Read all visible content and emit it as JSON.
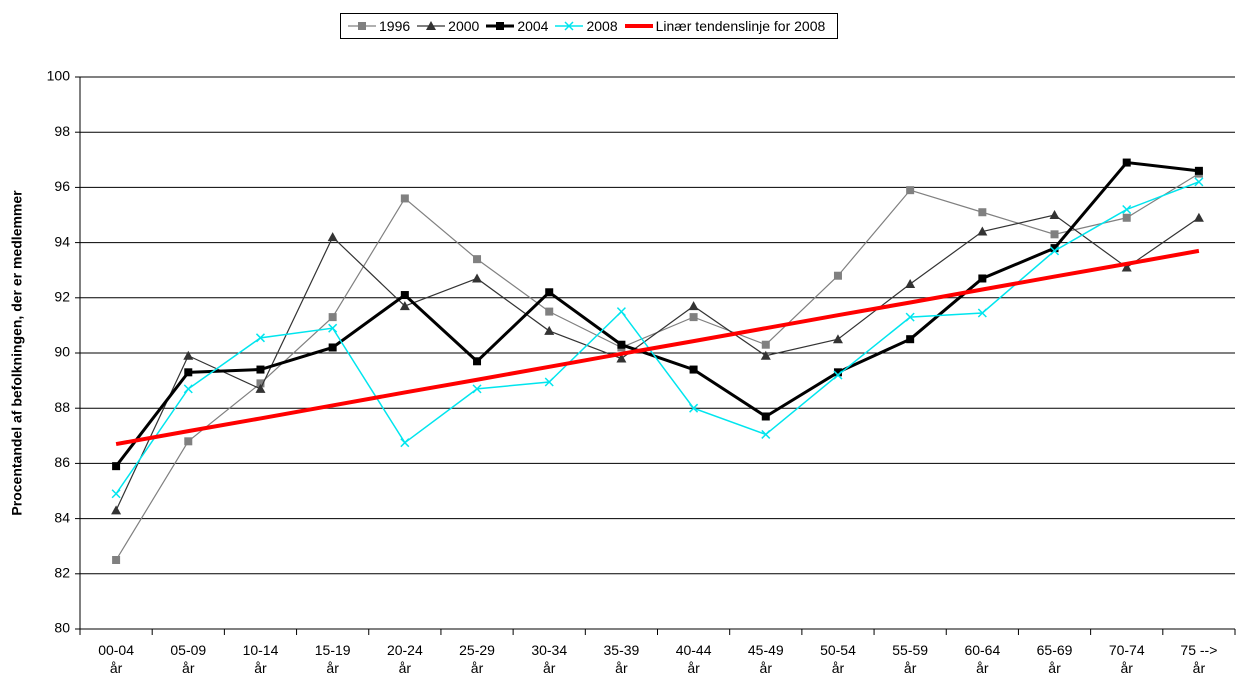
{
  "chart_data": {
    "type": "line",
    "y_label": "Procentandel af befolkningen, der er medlemmer",
    "categories": [
      "00-04\når",
      "05-09\når",
      "10-14\når",
      "15-19\når",
      "20-24\når",
      "25-29\når",
      "30-34\når",
      "35-39\når",
      "40-44\når",
      "45-49\når",
      "50-54\når",
      "55-59\når",
      "60-64\når",
      "65-69\når",
      "70-74\når",
      "75 -->\når"
    ],
    "series": [
      {
        "name": "1996",
        "color": "#808080",
        "marker": "square",
        "width": 1.2,
        "values": [
          82.5,
          86.8,
          88.9,
          91.3,
          95.6,
          93.4,
          91.5,
          90.2,
          91.3,
          90.3,
          92.8,
          95.9,
          95.1,
          94.3,
          94.9,
          96.5
        ]
      },
      {
        "name": "2000",
        "color": "#333333",
        "marker": "triangle",
        "width": 1.2,
        "values": [
          84.3,
          89.9,
          88.7,
          94.2,
          91.7,
          92.7,
          90.8,
          89.8,
          91.7,
          89.9,
          90.5,
          92.5,
          94.4,
          95.0,
          93.1,
          94.9
        ]
      },
      {
        "name": "2004",
        "color": "#000000",
        "marker": "square",
        "width": 3,
        "values": [
          85.9,
          89.3,
          89.4,
          90.2,
          92.1,
          89.7,
          92.2,
          90.3,
          89.4,
          87.7,
          89.3,
          90.5,
          92.7,
          93.8,
          96.9,
          96.6
        ]
      },
      {
        "name": "2008",
        "color": "#00e5ee",
        "marker": "x",
        "width": 1.5,
        "values": [
          84.9,
          88.7,
          90.55,
          90.9,
          86.75,
          88.7,
          88.95,
          91.5,
          88.0,
          87.05,
          89.2,
          91.3,
          91.45,
          93.7,
          95.2,
          96.2
        ]
      },
      {
        "name": "Linær tendenslinje for 2008",
        "color": "#ff0000",
        "marker": "none",
        "width": 4,
        "values": [
          86.7,
          87.17,
          87.63,
          88.1,
          88.57,
          89.03,
          89.5,
          89.97,
          90.43,
          90.9,
          91.37,
          91.83,
          92.3,
          92.77,
          93.23,
          93.7
        ]
      }
    ],
    "ylim": [
      80,
      100
    ],
    "yticks": [
      80,
      82,
      84,
      86,
      88,
      90,
      92,
      94,
      96,
      98,
      100
    ],
    "grid": true
  }
}
